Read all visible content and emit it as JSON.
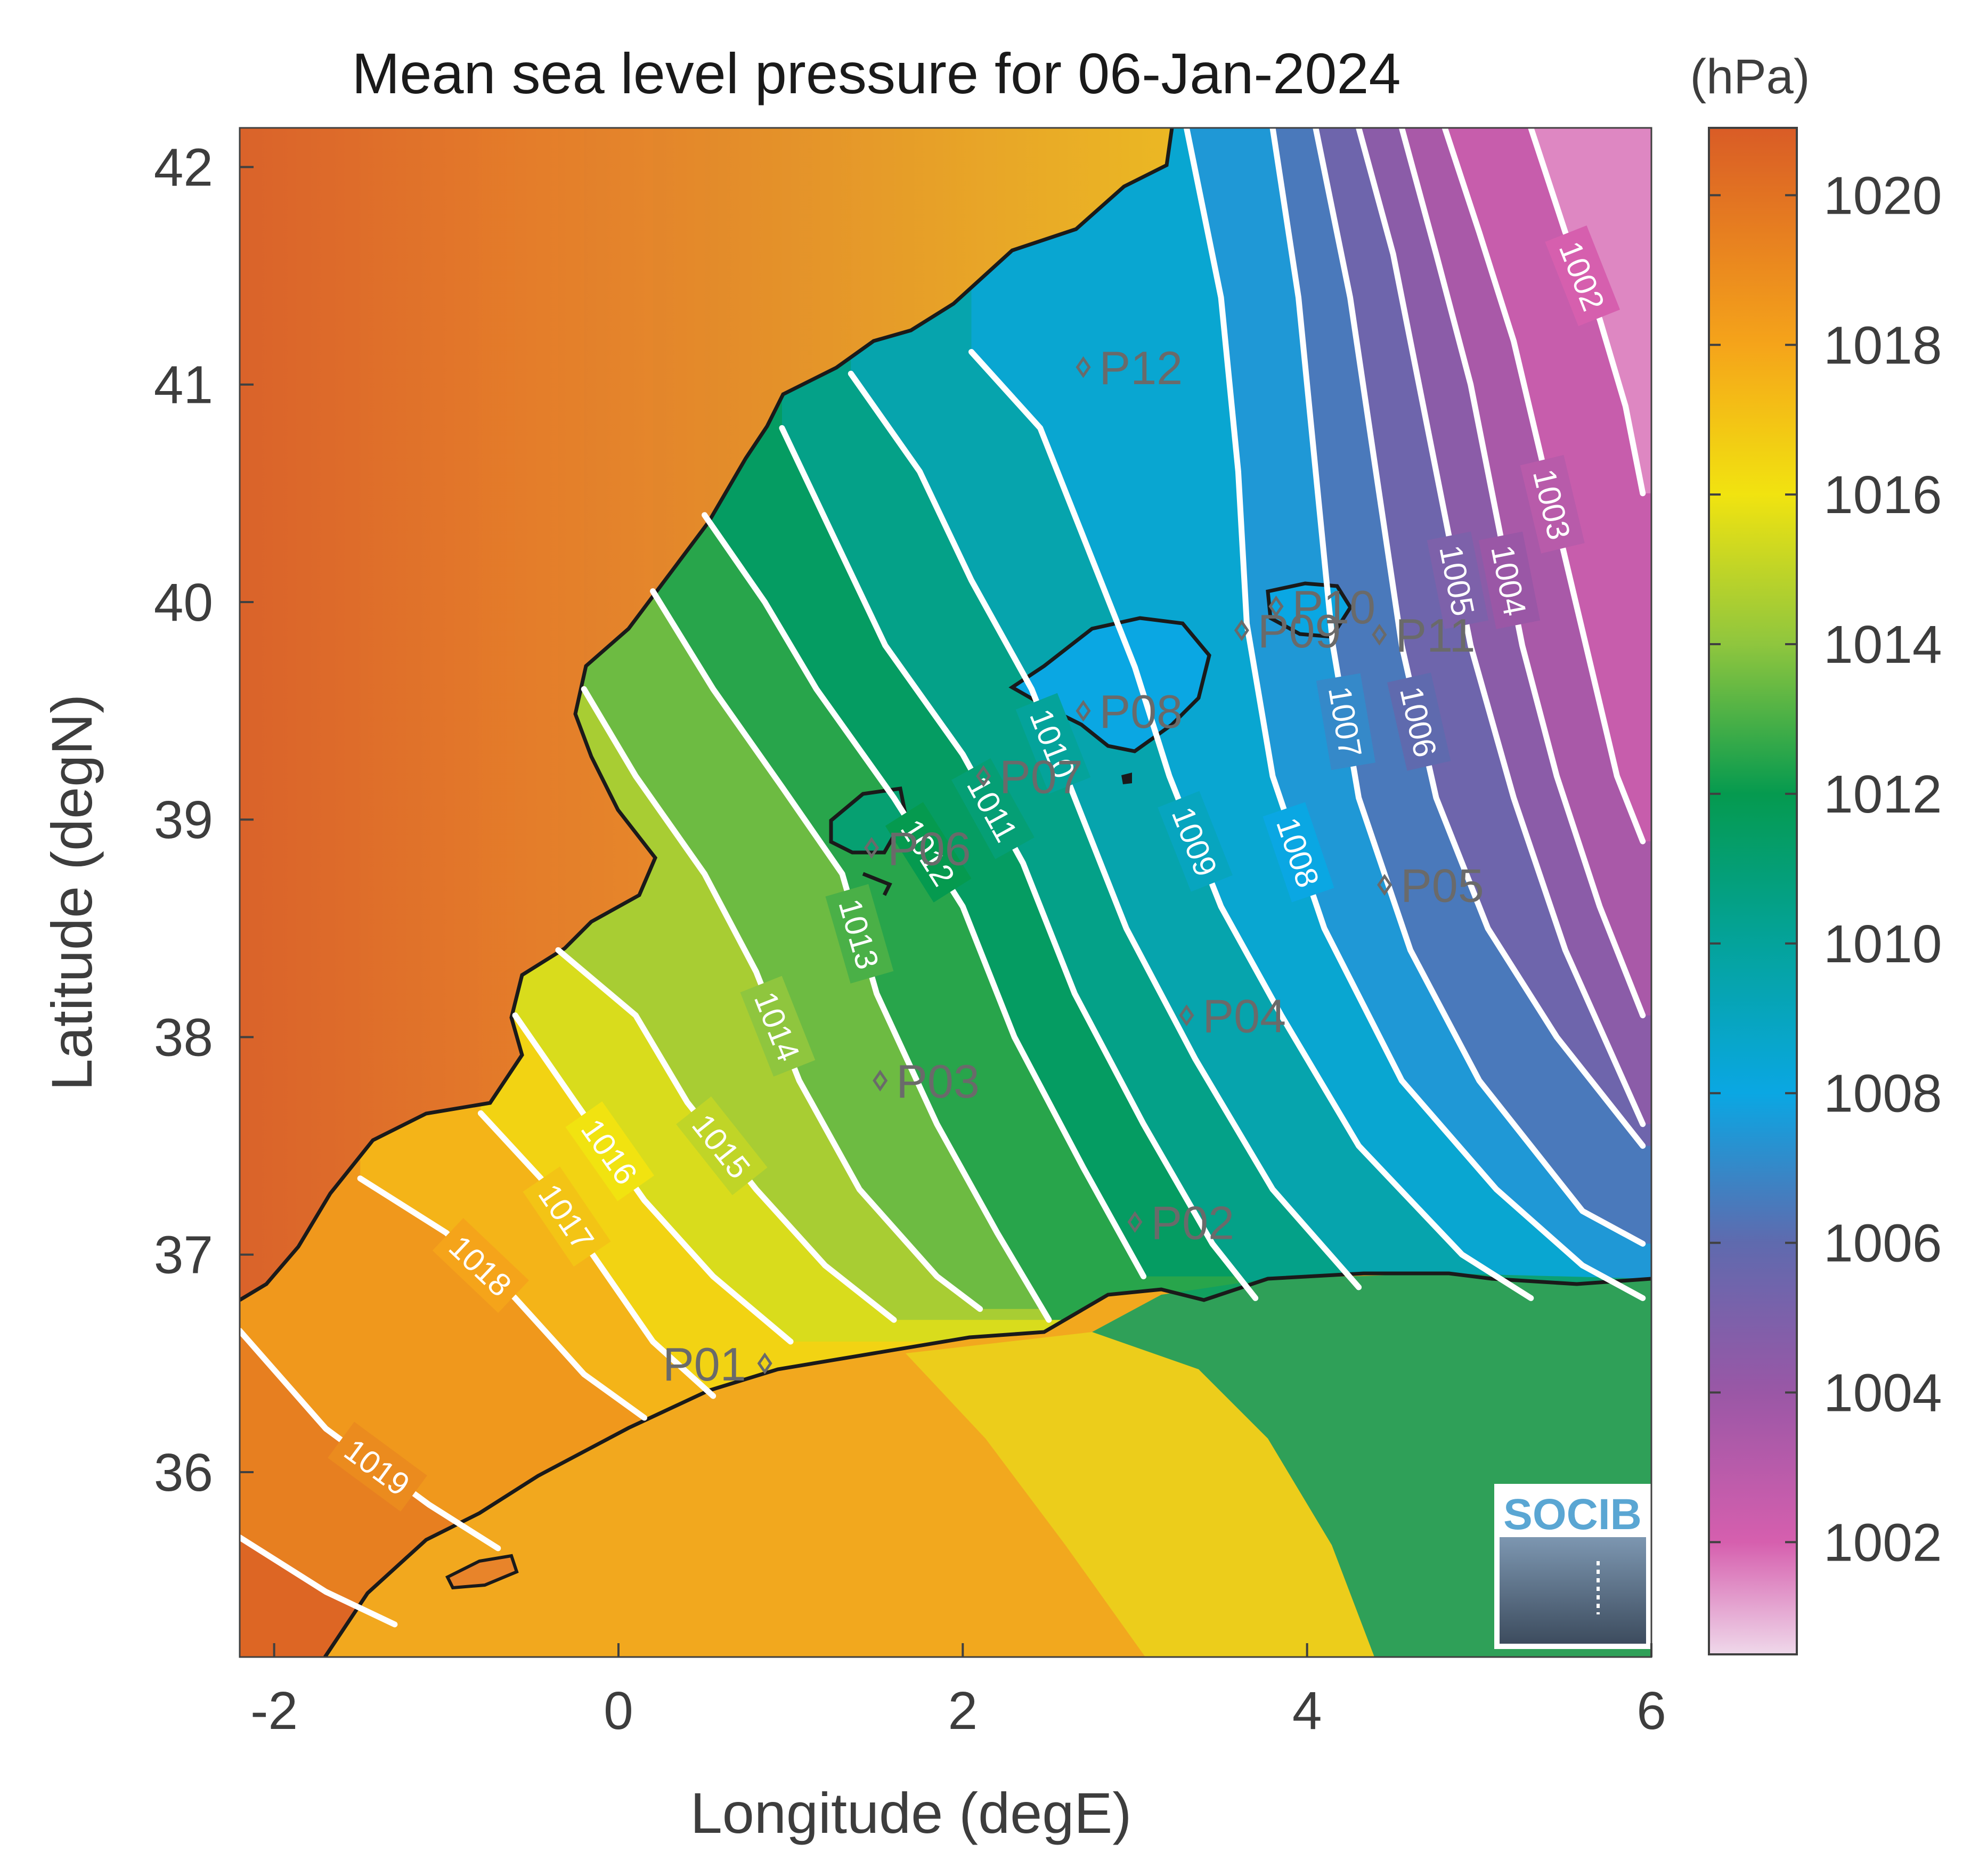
{
  "chart_data": {
    "type": "heatmap",
    "title": "Mean sea level pressure for 06-Jan-2024",
    "xlabel": "Longitude (degE)",
    "ylabel": "Latitude (degN)",
    "units": "(hPa)",
    "xlim": [
      -2.2,
      6
    ],
    "ylim": [
      35.15,
      42.18
    ],
    "x_ticks": [
      "-2",
      "0",
      "2",
      "4",
      "6"
    ],
    "x_tick_values": [
      -2,
      0,
      2,
      4,
      6
    ],
    "y_ticks": [
      "36",
      "37",
      "38",
      "39",
      "40",
      "41",
      "42"
    ],
    "y_tick_values": [
      36,
      37,
      38,
      39,
      40,
      41,
      42
    ],
    "colorbar": {
      "range": [
        1000.5,
        1020.9
      ],
      "ticks": [
        "1002",
        "1004",
        "1006",
        "1008",
        "1010",
        "1012",
        "1014",
        "1016",
        "1018",
        "1020"
      ],
      "tick_values": [
        1002,
        1004,
        1006,
        1008,
        1010,
        1012,
        1014,
        1016,
        1018,
        1020
      ],
      "colors": [
        {
          "value": 1000.5,
          "color": "#efd8ea"
        },
        {
          "value": 1002,
          "color": "#d65fae"
        },
        {
          "value": 1004,
          "color": "#9a57a6"
        },
        {
          "value": 1006,
          "color": "#5f6aae"
        },
        {
          "value": 1008,
          "color": "#0aa7e3"
        },
        {
          "value": 1010,
          "color": "#04a39b"
        },
        {
          "value": 1012,
          "color": "#059a4f"
        },
        {
          "value": 1014,
          "color": "#8fc63e"
        },
        {
          "value": 1016,
          "color": "#f1e310"
        },
        {
          "value": 1018,
          "color": "#f5a41a"
        },
        {
          "value": 1020.9,
          "color": "#d95c26"
        }
      ]
    },
    "isobars": [
      {
        "value": 1002,
        "label": "1002",
        "points": [
          [
            5.3,
            42.18
          ],
          [
            5.5,
            41.7
          ],
          [
            5.7,
            41.3
          ],
          [
            5.85,
            40.9
          ],
          [
            5.95,
            40.5
          ]
        ]
      },
      {
        "value": 1003,
        "label": "1003",
        "points": [
          [
            4.8,
            42.18
          ],
          [
            5.0,
            41.7
          ],
          [
            5.2,
            41.2
          ],
          [
            5.35,
            40.7
          ],
          [
            5.5,
            40.2
          ],
          [
            5.65,
            39.7
          ],
          [
            5.8,
            39.2
          ],
          [
            5.95,
            38.9
          ]
        ]
      },
      {
        "value": 1004,
        "label": "1004",
        "points": [
          [
            4.55,
            42.18
          ],
          [
            4.75,
            41.6
          ],
          [
            4.95,
            41.0
          ],
          [
            5.1,
            40.4
          ],
          [
            5.25,
            39.8
          ],
          [
            5.45,
            39.2
          ],
          [
            5.7,
            38.6
          ],
          [
            5.95,
            38.1
          ]
        ]
      },
      {
        "value": 1005,
        "label": "1005",
        "points": [
          [
            4.3,
            42.18
          ],
          [
            4.5,
            41.6
          ],
          [
            4.65,
            41.0
          ],
          [
            4.8,
            40.4
          ],
          [
            4.95,
            39.8
          ],
          [
            5.2,
            39.1
          ],
          [
            5.5,
            38.4
          ],
          [
            5.95,
            37.6
          ]
        ]
      },
      {
        "value": 1006,
        "label": "1006",
        "points": [
          [
            4.05,
            42.18
          ],
          [
            4.25,
            41.4
          ],
          [
            4.4,
            40.6
          ],
          [
            4.55,
            39.8
          ],
          [
            4.75,
            39.1
          ],
          [
            5.05,
            38.5
          ],
          [
            5.45,
            38.0
          ],
          [
            5.95,
            37.5
          ]
        ]
      },
      {
        "value": 1007,
        "label": "1007",
        "points": [
          [
            3.8,
            42.18
          ],
          [
            3.95,
            41.4
          ],
          [
            4.05,
            40.6
          ],
          [
            4.15,
            39.8
          ],
          [
            4.3,
            39.1
          ],
          [
            4.6,
            38.4
          ],
          [
            5.0,
            37.8
          ],
          [
            5.6,
            37.2
          ],
          [
            5.95,
            37.05
          ]
        ]
      },
      {
        "value": 1008,
        "label": "1008",
        "points": [
          [
            3.3,
            42.18
          ],
          [
            3.5,
            41.4
          ],
          [
            3.6,
            40.6
          ],
          [
            3.65,
            39.9
          ],
          [
            3.8,
            39.2
          ],
          [
            4.1,
            38.5
          ],
          [
            4.55,
            37.8
          ],
          [
            5.1,
            37.3
          ],
          [
            5.6,
            36.95
          ],
          [
            5.95,
            36.8
          ]
        ]
      },
      {
        "value": 1009,
        "label": "1009",
        "points": [
          [
            2.05,
            41.15
          ],
          [
            2.45,
            40.8
          ],
          [
            2.75,
            40.2
          ],
          [
            3.0,
            39.7
          ],
          [
            3.2,
            39.2
          ],
          [
            3.5,
            38.6
          ],
          [
            3.85,
            38.1
          ],
          [
            4.3,
            37.5
          ],
          [
            4.9,
            37.0
          ],
          [
            5.3,
            36.8
          ]
        ]
      },
      {
        "value": 1010,
        "label": "1010",
        "points": [
          [
            1.35,
            41.05
          ],
          [
            1.75,
            40.6
          ],
          [
            2.05,
            40.1
          ],
          [
            2.4,
            39.6
          ],
          [
            2.65,
            39.1
          ],
          [
            2.95,
            38.5
          ],
          [
            3.35,
            37.9
          ],
          [
            3.8,
            37.3
          ],
          [
            4.3,
            36.85
          ]
        ]
      },
      {
        "value": 1011,
        "label": "1011",
        "points": [
          [
            0.95,
            40.8
          ],
          [
            1.25,
            40.3
          ],
          [
            1.55,
            39.8
          ],
          [
            2.0,
            39.3
          ],
          [
            2.35,
            38.8
          ],
          [
            2.65,
            38.2
          ],
          [
            3.05,
            37.6
          ],
          [
            3.45,
            37.05
          ],
          [
            3.7,
            36.8
          ]
        ]
      },
      {
        "value": 1012,
        "label": "1012",
        "points": [
          [
            0.5,
            40.4
          ],
          [
            0.85,
            40.0
          ],
          [
            1.15,
            39.6
          ],
          [
            1.6,
            39.1
          ],
          [
            2.0,
            38.6
          ],
          [
            2.3,
            38.0
          ],
          [
            2.7,
            37.4
          ],
          [
            3.05,
            36.9
          ]
        ]
      },
      {
        "value": 1013,
        "label": "1013",
        "points": [
          [
            0.2,
            40.05
          ],
          [
            0.55,
            39.6
          ],
          [
            0.95,
            39.15
          ],
          [
            1.3,
            38.75
          ],
          [
            1.5,
            38.2
          ],
          [
            1.85,
            37.6
          ],
          [
            2.2,
            37.1
          ],
          [
            2.5,
            36.7
          ]
        ]
      },
      {
        "value": 1014,
        "label": "1014",
        "points": [
          [
            -0.2,
            39.6
          ],
          [
            0.1,
            39.2
          ],
          [
            0.5,
            38.75
          ],
          [
            0.8,
            38.3
          ],
          [
            1.05,
            37.8
          ],
          [
            1.4,
            37.3
          ],
          [
            1.85,
            36.9
          ],
          [
            2.1,
            36.75
          ]
        ]
      },
      {
        "value": 1015,
        "label": "1015",
        "points": [
          [
            -0.35,
            38.4
          ],
          [
            0.1,
            38.1
          ],
          [
            0.4,
            37.7
          ],
          [
            0.8,
            37.3
          ],
          [
            1.2,
            36.95
          ],
          [
            1.6,
            36.7
          ]
        ]
      },
      {
        "value": 1016,
        "label": "1016",
        "points": [
          [
            -0.6,
            38.1
          ],
          [
            -0.25,
            37.7
          ],
          [
            0.15,
            37.25
          ],
          [
            0.55,
            36.9
          ],
          [
            1.0,
            36.6
          ]
        ]
      },
      {
        "value": 1017,
        "label": "1017",
        "points": [
          [
            -0.8,
            37.65
          ],
          [
            -0.45,
            37.35
          ],
          [
            -0.15,
            37.0
          ],
          [
            0.2,
            36.6
          ],
          [
            0.55,
            36.35
          ]
        ]
      },
      {
        "value": 1018,
        "label": "1018",
        "points": [
          [
            -1.5,
            37.35
          ],
          [
            -1.0,
            37.1
          ],
          [
            -0.6,
            36.8
          ],
          [
            -0.2,
            36.45
          ],
          [
            0.15,
            36.25
          ]
        ]
      },
      {
        "value": 1019,
        "label": "1019",
        "points": [
          [
            -2.2,
            36.65
          ],
          [
            -1.7,
            36.2
          ],
          [
            -1.1,
            35.85
          ],
          [
            -0.7,
            35.65
          ]
        ]
      },
      {
        "value": 1020,
        "label": "",
        "points": [
          [
            -2.2,
            35.7
          ],
          [
            -1.7,
            35.45
          ],
          [
            -1.3,
            35.3
          ]
        ]
      }
    ],
    "stations": [
      {
        "label": "P01",
        "lon": 0.85,
        "lat": 36.5
      },
      {
        "label": "P02",
        "lon": 3.0,
        "lat": 37.15
      },
      {
        "label": "P03",
        "lon": 1.52,
        "lat": 37.8
      },
      {
        "label": "P04",
        "lon": 3.3,
        "lat": 38.1
      },
      {
        "label": "P05",
        "lon": 4.45,
        "lat": 38.7
      },
      {
        "label": "P06",
        "lon": 1.47,
        "lat": 38.87
      },
      {
        "label": "P07",
        "lon": 2.12,
        "lat": 39.2
      },
      {
        "label": "P08",
        "lon": 2.7,
        "lat": 39.5
      },
      {
        "label": "P09",
        "lon": 3.62,
        "lat": 39.87
      },
      {
        "label": "P10",
        "lon": 3.82,
        "lat": 39.98
      },
      {
        "label": "P11",
        "lon": 4.42,
        "lat": 39.85
      },
      {
        "label": "P12",
        "lon": 2.7,
        "lat": 41.08
      }
    ]
  },
  "logo": {
    "text": "SOCIB"
  }
}
